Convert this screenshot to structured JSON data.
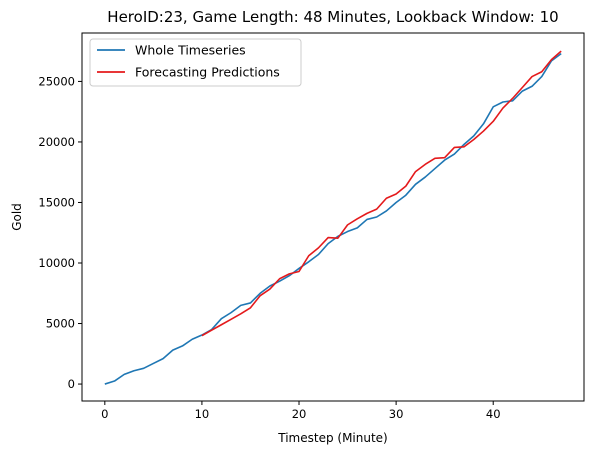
{
  "chart_data": {
    "type": "line",
    "title": "HeroID:23, Game Length: 48 Minutes, Lookback Window: 10",
    "xlabel": "Timestep (Minute)",
    "ylabel": "Gold",
    "xlim": [
      -2.35,
      49.35
    ],
    "ylim": [
      -1400,
      29000
    ],
    "xticks": [
      0,
      10,
      20,
      30,
      40
    ],
    "yticks": [
      0,
      5000,
      10000,
      15000,
      20000,
      25000
    ],
    "grid": false,
    "legend_position": "upper-left",
    "series": [
      {
        "name": "Whole Timeseries",
        "color": "#1f77b4",
        "x": [
          0,
          1,
          2,
          3,
          4,
          5,
          6,
          7,
          8,
          9,
          10,
          11,
          12,
          13,
          14,
          15,
          16,
          17,
          18,
          19,
          20,
          21,
          22,
          23,
          24,
          25,
          26,
          27,
          28,
          29,
          30,
          31,
          32,
          33,
          34,
          35,
          36,
          37,
          38,
          39,
          40,
          41,
          42,
          43,
          44,
          45,
          46,
          47
        ],
        "y": [
          0,
          250,
          800,
          1100,
          1300,
          1700,
          2100,
          2800,
          3150,
          3700,
          4050,
          4500,
          5400,
          5900,
          6500,
          6700,
          7500,
          8100,
          8500,
          8950,
          9550,
          10100,
          10700,
          11600,
          12200,
          12600,
          12900,
          13600,
          13800,
          14300,
          15000,
          15600,
          16500,
          17100,
          17800,
          18500,
          19000,
          19800,
          20500,
          21500,
          22900,
          23300,
          23400,
          24200,
          24600,
          25400,
          26700,
          27300
        ]
      },
      {
        "name": "Forecasting Predictions",
        "color": "#e41a1c",
        "x": [
          10,
          11,
          12,
          13,
          14,
          15,
          16,
          17,
          18,
          19,
          20,
          21,
          22,
          23,
          24,
          25,
          26,
          27,
          28,
          29,
          30,
          31,
          32,
          33,
          34,
          35,
          36,
          37,
          38,
          39,
          40,
          41,
          42,
          43,
          44,
          45,
          46,
          47
        ],
        "y": [
          4000,
          4450,
          4900,
          5350,
          5800,
          6300,
          7300,
          7850,
          8700,
          9100,
          9300,
          10600,
          11250,
          12100,
          12050,
          13150,
          13650,
          14100,
          14450,
          15350,
          15700,
          16350,
          17550,
          18150,
          18650,
          18700,
          19550,
          19600,
          20200,
          20900,
          21700,
          22800,
          23600,
          24500,
          25400,
          25800,
          26800,
          27500
        ]
      }
    ]
  }
}
